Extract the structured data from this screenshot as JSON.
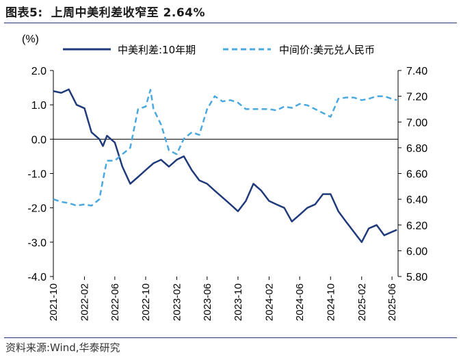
{
  "header": {
    "figure_label": "图表5:",
    "title": "上周中美利差收窄至 2.64%"
  },
  "footer": {
    "source": "资料来源:Wind,华泰研究"
  },
  "colors": {
    "spread": "#1f3a7a",
    "fx": "#4aa8e0",
    "rule": "#1f3a6b"
  },
  "chart_data": {
    "type": "line",
    "title": "上周中美利差收窄至 2.64%",
    "left_axis_unit": "(%)",
    "left_ylim": [
      -4.0,
      2.0
    ],
    "left_ticks": [
      "2.0",
      "1.0",
      "0.0",
      "-1.0",
      "-2.0",
      "-3.0",
      "-4.0"
    ],
    "right_ylim": [
      5.8,
      7.4
    ],
    "right_ticks": [
      "7.40",
      "7.20",
      "7.00",
      "6.80",
      "6.60",
      "6.40",
      "6.20",
      "6.00",
      "5.80"
    ],
    "x_ticks": [
      "2021-10",
      "2022-02",
      "2022-06",
      "2022-10",
      "2023-02",
      "2023-06",
      "2023-10",
      "2024-02",
      "2024-06",
      "2024-10",
      "2025-02",
      "2025-06"
    ],
    "legend_position": "top",
    "series": [
      {
        "name": "中美利差:10年期",
        "axis": "left",
        "style": "solid",
        "x": [
          "2021-10-01",
          "2021-11-01",
          "2021-12-01",
          "2022-01-01",
          "2022-02-01",
          "2022-03-01",
          "2022-04-01",
          "2022-04-15",
          "2022-05-01",
          "2022-06-01",
          "2022-07-01",
          "2022-08-01",
          "2022-09-01",
          "2022-10-01",
          "2022-11-01",
          "2022-12-01",
          "2023-01-01",
          "2023-02-01",
          "2023-03-01",
          "2023-04-01",
          "2023-05-01",
          "2023-06-01",
          "2023-07-01",
          "2023-08-01",
          "2023-09-01",
          "2023-10-01",
          "2023-11-01",
          "2023-12-01",
          "2024-01-01",
          "2024-02-01",
          "2024-03-01",
          "2024-04-01",
          "2024-05-01",
          "2024-06-01",
          "2024-07-01",
          "2024-08-01",
          "2024-09-01",
          "2024-10-01",
          "2024-11-01",
          "2024-12-01",
          "2025-01-01",
          "2025-02-01",
          "2025-03-01",
          "2025-04-01",
          "2025-05-01",
          "2025-06-01",
          "2025-06-20"
        ],
        "values": [
          1.4,
          1.35,
          1.45,
          1.0,
          0.9,
          0.2,
          0.0,
          -0.2,
          0.1,
          -0.1,
          -0.8,
          -1.3,
          -1.1,
          -0.9,
          -0.7,
          -0.6,
          -0.8,
          -0.6,
          -0.5,
          -0.9,
          -1.2,
          -1.3,
          -1.5,
          -1.7,
          -1.9,
          -2.1,
          -1.8,
          -1.3,
          -1.5,
          -1.8,
          -1.9,
          -2.0,
          -2.4,
          -2.2,
          -2.0,
          -1.9,
          -1.6,
          -1.6,
          -2.1,
          -2.4,
          -2.7,
          -3.0,
          -2.6,
          -2.5,
          -2.8,
          -2.7,
          -2.64
        ]
      },
      {
        "name": "中间价:美元兑人民币",
        "axis": "right",
        "style": "dashed",
        "x": [
          "2021-10-01",
          "2021-11-01",
          "2021-12-01",
          "2022-01-01",
          "2022-02-01",
          "2022-03-01",
          "2022-04-01",
          "2022-04-15",
          "2022-05-01",
          "2022-06-01",
          "2022-07-01",
          "2022-08-01",
          "2022-09-01",
          "2022-10-01",
          "2022-10-20",
          "2022-11-01",
          "2022-12-01",
          "2023-01-01",
          "2023-02-01",
          "2023-03-01",
          "2023-04-01",
          "2023-05-01",
          "2023-06-01",
          "2023-07-01",
          "2023-08-01",
          "2023-09-01",
          "2023-10-01",
          "2023-11-01",
          "2023-12-01",
          "2024-01-01",
          "2024-02-01",
          "2024-03-01",
          "2024-04-01",
          "2024-05-01",
          "2024-06-01",
          "2024-07-01",
          "2024-08-01",
          "2024-09-01",
          "2024-10-01",
          "2024-11-01",
          "2024-12-01",
          "2025-01-01",
          "2025-02-01",
          "2025-03-01",
          "2025-04-01",
          "2025-05-01",
          "2025-06-01",
          "2025-06-20"
        ],
        "values": [
          6.4,
          6.38,
          6.37,
          6.35,
          6.36,
          6.35,
          6.4,
          6.55,
          6.7,
          6.7,
          6.75,
          6.8,
          7.1,
          7.12,
          7.25,
          7.1,
          6.98,
          6.78,
          6.75,
          6.87,
          6.92,
          6.9,
          7.1,
          7.2,
          7.16,
          7.17,
          7.15,
          7.1,
          7.1,
          7.1,
          7.1,
          7.09,
          7.12,
          7.11,
          7.14,
          7.13,
          7.1,
          7.07,
          7.04,
          7.18,
          7.19,
          7.19,
          7.17,
          7.18,
          7.2,
          7.2,
          7.18,
          7.17
        ]
      }
    ]
  }
}
